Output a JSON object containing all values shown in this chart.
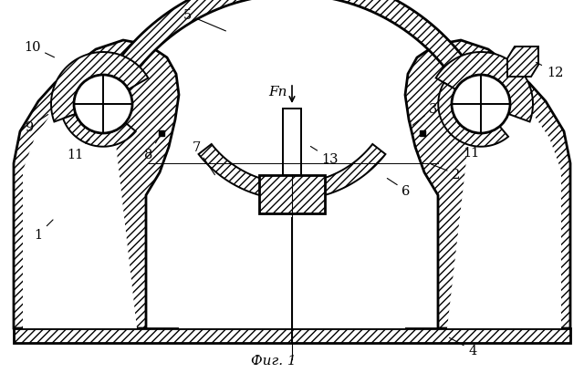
{
  "background_color": "#ffffff",
  "line_color": "#000000",
  "fig_label": "Фиг. 1",
  "lw": 1.4,
  "lw_thick": 2.0
}
